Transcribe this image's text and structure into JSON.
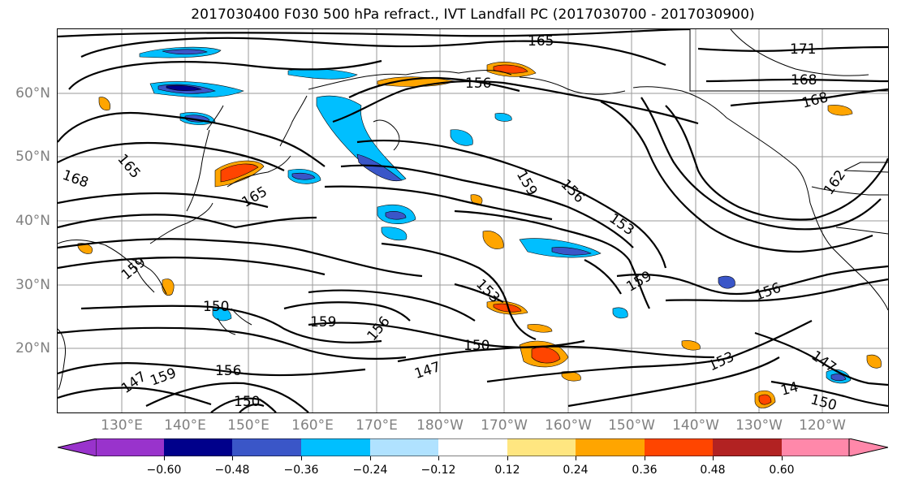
{
  "title": "2017030400 F030 500 hPa refract., IVT Landfall PC (2017030700 - 2017030900)",
  "lat_labels": [
    "60°N",
    "50°N",
    "40°N",
    "30°N",
    "20°N"
  ],
  "lon_labels": [
    "130°E",
    "140°E",
    "150°E",
    "160°E",
    "170°E",
    "180°W",
    "170°W",
    "160°W",
    "150°W",
    "140°W",
    "130°W",
    "120°W"
  ],
  "colorbar": {
    "ticks": [
      "−0.60",
      "−0.48",
      "−0.36",
      "−0.24",
      "−0.12",
      "0.12",
      "0.24",
      "0.36",
      "0.48",
      "0.60"
    ],
    "colors": [
      "#9933cc",
      "#00008b",
      "#3a56c8",
      "#00bfff",
      "#b0e2ff",
      "#ffffff",
      "#ffe680",
      "#ffa500",
      "#ff4500",
      "#b22222",
      "#ff88aa"
    ]
  },
  "contour_labels": [
    "165",
    "171",
    "168",
    "168",
    "156",
    "159",
    "156",
    "153",
    "162",
    "159",
    "165",
    "168",
    "165",
    "153",
    "159",
    "156",
    "150",
    "159",
    "156",
    "150",
    "147",
    "153",
    "147",
    "14",
    "150",
    "156",
    "159",
    "147",
    "150"
  ]
}
